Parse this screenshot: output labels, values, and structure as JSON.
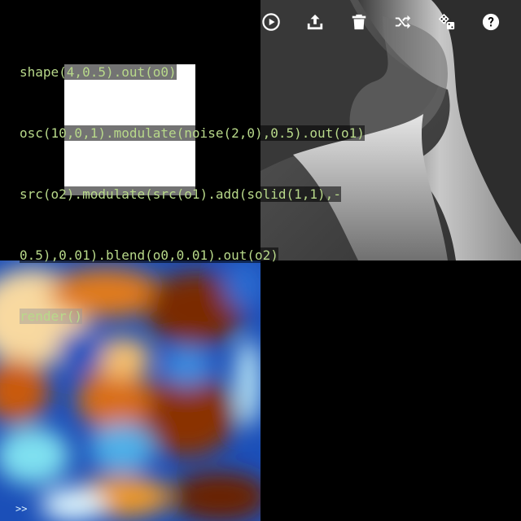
{
  "editor": {
    "lines": [
      "shape(4,0.5).out(o0)",
      "osc(10,0,1).modulate(noise(2,0),0.5).out(o1)",
      "src(o2).modulate(src(o1).add(solid(1,1),-",
      "0.5),0.01).blend(o0,0.01).out(o2)",
      "render()"
    ]
  },
  "toolbar": {
    "buttons": [
      {
        "name": "run-button",
        "icon": "play-icon"
      },
      {
        "name": "share-button",
        "icon": "upload-icon"
      },
      {
        "name": "clear-button",
        "icon": "trash-icon"
      },
      {
        "name": "shuffle-button",
        "icon": "shuffle-icon"
      },
      {
        "name": "random-button",
        "icon": "dice-icon"
      },
      {
        "name": "help-button",
        "icon": "help-icon"
      }
    ]
  },
  "console": {
    "prompt": ">>"
  },
  "colors": {
    "code_text": "#b8d98a",
    "code_number": "#c888c8",
    "background": "#000000"
  }
}
